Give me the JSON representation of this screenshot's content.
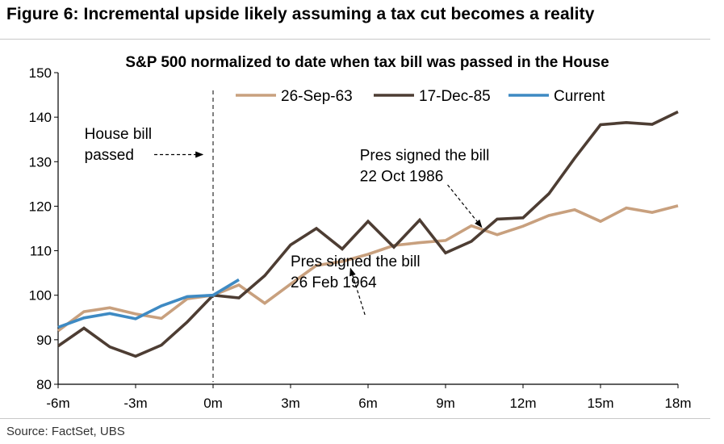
{
  "figure_title": "Figure 6: Incremental upside likely assuming a tax cut becomes a reality",
  "source": "Source:  FactSet, UBS",
  "chart_data": {
    "type": "line",
    "title": "S&P 500 normalized to date when tax bill was passed in the House",
    "xlabel": "",
    "ylabel": "",
    "ylim": [
      80,
      150
    ],
    "xlim": [
      -6,
      18
    ],
    "x_ticks": [
      -6,
      -3,
      0,
      3,
      6,
      9,
      12,
      15,
      18
    ],
    "x_tick_labels": [
      "-6m",
      "-3m",
      "0m",
      "3m",
      "6m",
      "9m",
      "12m",
      "15m",
      "18m"
    ],
    "y_ticks": [
      80,
      90,
      100,
      110,
      120,
      130,
      140,
      150
    ],
    "y_tick_labels": [
      "80",
      "90",
      "100",
      "110",
      "120",
      "130",
      "140",
      "150"
    ],
    "grid": false,
    "legend_position": "top",
    "series": [
      {
        "name": "26-Sep-63",
        "color": "#c8a07e",
        "x": [
          -6,
          -5,
          -4,
          -3,
          -2,
          -1,
          0,
          1,
          2,
          3,
          4,
          5,
          6,
          7,
          8,
          9,
          10,
          11,
          12,
          13,
          14,
          15,
          16,
          17,
          18
        ],
        "values": [
          92,
          96.3,
          97.2,
          95.8,
          94.8,
          99.2,
          100,
          102.3,
          98.2,
          102.5,
          106.7,
          107.6,
          109.2,
          111.2,
          111.8,
          112.3,
          115.6,
          113.6,
          115.5,
          117.9,
          119.2,
          116.6,
          119.6,
          118.6,
          120.1
        ]
      },
      {
        "name": "17-Dec-85",
        "color": "#4d3d33",
        "x": [
          -6,
          -5,
          -4,
          -3,
          -2,
          -1,
          0,
          1,
          2,
          3,
          4,
          5,
          6,
          7,
          8,
          9,
          10,
          11,
          12,
          13,
          14,
          15,
          16,
          17,
          18
        ],
        "values": [
          88.6,
          92.6,
          88.4,
          86.3,
          88.8,
          94,
          100,
          99.4,
          104.4,
          111.3,
          115,
          110.4,
          116.6,
          110.8,
          116.9,
          109.5,
          112.1,
          117.1,
          117.4,
          122.8,
          130.8,
          138.3,
          138.8,
          138.4,
          141.2
        ]
      },
      {
        "name": "Current",
        "color": "#3e8ac3",
        "x": [
          -6,
          -5,
          -4,
          -3,
          -2,
          -1,
          0,
          1
        ],
        "values": [
          92.8,
          94.9,
          95.9,
          94.7,
          97.6,
          99.7,
          100,
          103.5
        ]
      }
    ],
    "annotations": [
      {
        "lines": [
          "House bill",
          "passed"
        ],
        "text_x": -4.98,
        "text_y": 135.1,
        "arrow_from": [
          -2.28,
          131.6
        ],
        "arrow_to": [
          -0.4,
          131.6
        ]
      },
      {
        "lines": [
          "Pres signed the bill",
          "22 Oct 1986"
        ],
        "text_x": 5.68,
        "text_y": 130.3,
        "arrow_from": [
          9.08,
          124.8
        ],
        "arrow_to": [
          10.4,
          115.3
        ]
      },
      {
        "lines": [
          "Pres signed the bill",
          "26 Feb 1964"
        ],
        "text_x": 3.0,
        "text_y": 106.5,
        "arrow_from": [
          5.88,
          95.6
        ],
        "arrow_to": [
          5.32,
          106.0
        ]
      }
    ],
    "vertical_marker": {
      "x": 0,
      "from_y": 80.5,
      "to_y": 146,
      "style": "dashed"
    }
  }
}
